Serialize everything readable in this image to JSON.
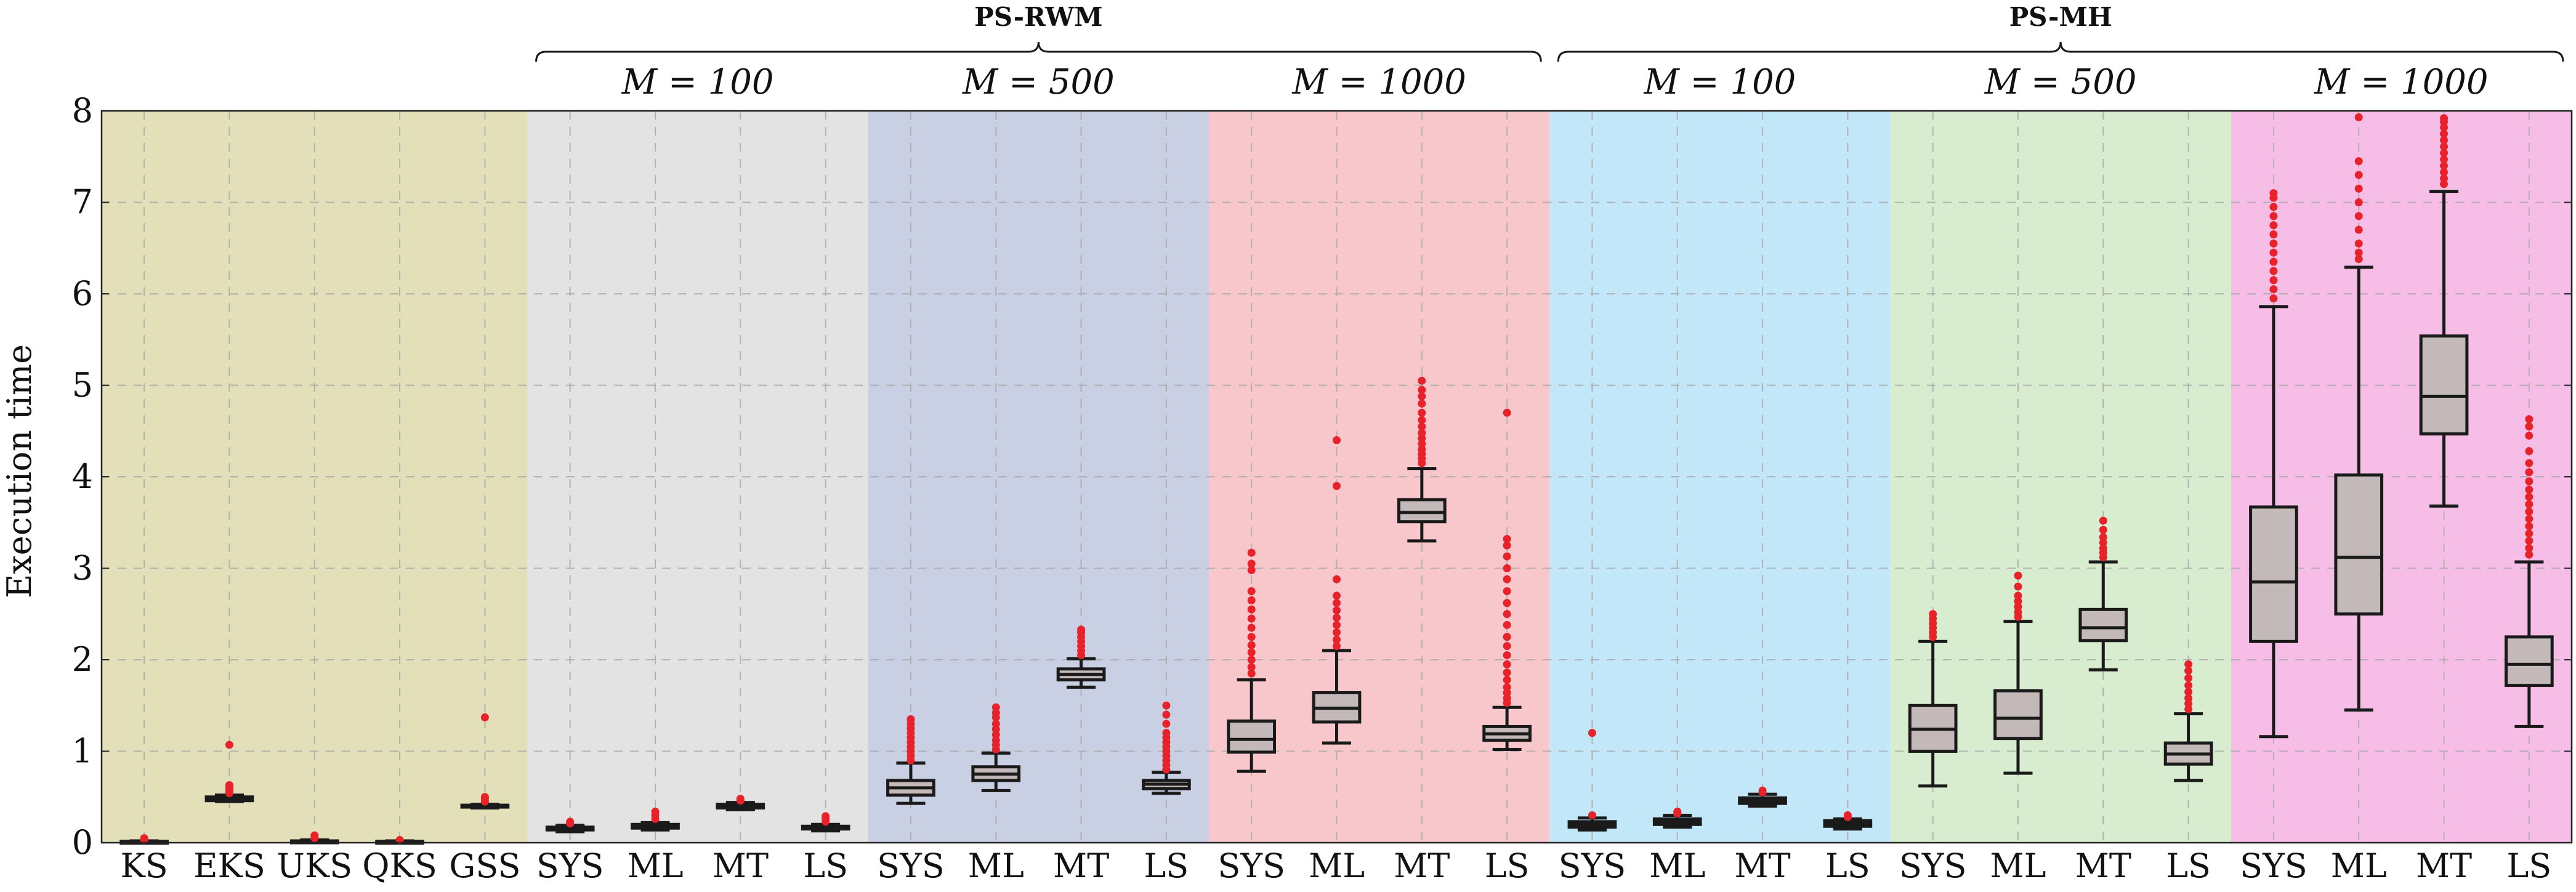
{
  "chart_data": {
    "type": "box",
    "ylabel": "Execution time",
    "ylim": [
      0,
      8
    ],
    "yticks": [
      0,
      1,
      2,
      3,
      4,
      5,
      6,
      7,
      8
    ],
    "grid": true,
    "top_groups": [
      {
        "label": "PS-RWM",
        "panels": [
          1,
          2,
          3
        ]
      },
      {
        "label": "PS-MH",
        "panels": [
          4,
          5,
          6
        ]
      }
    ],
    "panels": [
      {
        "subtitle": "",
        "color": "#e3dfb8",
        "boxes": [
          {
            "label": "KS",
            "q1": 0.005,
            "median": 0.01,
            "q3": 0.015,
            "lo": 0.0,
            "hi": 0.02,
            "outliers": [
              0.03,
              0.05
            ]
          },
          {
            "label": "EKS",
            "q1": 0.46,
            "median": 0.48,
            "q3": 0.5,
            "lo": 0.45,
            "hi": 0.52,
            "outliers": [
              0.54,
              0.56,
              0.58,
              0.6,
              0.63,
              1.07
            ]
          },
          {
            "label": "UKS",
            "q1": 0.01,
            "median": 0.015,
            "q3": 0.02,
            "lo": 0.0,
            "hi": 0.03,
            "outliers": [
              0.05,
              0.08
            ]
          },
          {
            "label": "QKS",
            "q1": 0.005,
            "median": 0.01,
            "q3": 0.015,
            "lo": 0.0,
            "hi": 0.02,
            "outliers": [
              0.03
            ]
          },
          {
            "label": "GSS",
            "q1": 0.39,
            "median": 0.4,
            "q3": 0.41,
            "lo": 0.38,
            "hi": 0.42,
            "outliers": [
              0.45,
              0.48,
              0.5,
              1.37
            ]
          }
        ]
      },
      {
        "subtitle": "M = 100",
        "color": "#e3e3e3",
        "boxes": [
          {
            "label": "SYS",
            "q1": 0.14,
            "median": 0.155,
            "q3": 0.17,
            "lo": 0.12,
            "hi": 0.19,
            "outliers": [
              0.21,
              0.23
            ]
          },
          {
            "label": "ML",
            "q1": 0.16,
            "median": 0.18,
            "q3": 0.2,
            "lo": 0.14,
            "hi": 0.22,
            "outliers": [
              0.26,
              0.3,
              0.34
            ]
          },
          {
            "label": "MT",
            "q1": 0.38,
            "median": 0.4,
            "q3": 0.42,
            "lo": 0.36,
            "hi": 0.44,
            "outliers": [
              0.46,
              0.48
            ]
          },
          {
            "label": "LS",
            "q1": 0.15,
            "median": 0.165,
            "q3": 0.18,
            "lo": 0.13,
            "hi": 0.2,
            "outliers": [
              0.23,
              0.26,
              0.29
            ]
          }
        ]
      },
      {
        "subtitle": "M = 500",
        "color": "#c9d0e3",
        "boxes": [
          {
            "label": "SYS",
            "q1": 0.52,
            "median": 0.6,
            "q3": 0.68,
            "lo": 0.43,
            "hi": 0.87,
            "outliers": [
              0.9,
              0.95,
              1.0,
              1.05,
              1.1,
              1.15,
              1.2,
              1.25,
              1.3,
              1.35
            ]
          },
          {
            "label": "ML",
            "q1": 0.68,
            "median": 0.75,
            "q3": 0.83,
            "lo": 0.57,
            "hi": 0.98,
            "outliers": [
              1.02,
              1.07,
              1.12,
              1.18,
              1.24,
              1.3,
              1.37,
              1.42,
              1.48
            ]
          },
          {
            "label": "MT",
            "q1": 1.78,
            "median": 1.84,
            "q3": 1.9,
            "lo": 1.7,
            "hi": 2.01,
            "outliers": [
              2.05,
              2.1,
              2.15,
              2.2,
              2.25,
              2.3,
              2.33
            ]
          },
          {
            "label": "LS",
            "q1": 0.59,
            "median": 0.64,
            "q3": 0.68,
            "lo": 0.54,
            "hi": 0.77,
            "outliers": [
              0.8,
              0.85,
              0.9,
              0.95,
              1.0,
              1.05,
              1.1,
              1.15,
              1.2,
              1.3,
              1.4,
              1.5
            ]
          }
        ]
      },
      {
        "subtitle": "M = 1000",
        "color": "#f8c7cb",
        "boxes": [
          {
            "label": "SYS",
            "q1": 0.99,
            "median": 1.13,
            "q3": 1.33,
            "lo": 0.78,
            "hi": 1.78,
            "outliers": [
              1.85,
              1.92,
              2.0,
              2.08,
              2.16,
              2.25,
              2.35,
              2.45,
              2.55,
              2.65,
              2.75,
              2.98,
              3.05,
              3.17
            ]
          },
          {
            "label": "ML",
            "q1": 1.32,
            "median": 1.47,
            "q3": 1.64,
            "lo": 1.09,
            "hi": 2.1,
            "outliers": [
              2.15,
              2.22,
              2.3,
              2.38,
              2.46,
              2.54,
              2.62,
              2.7,
              2.88,
              3.9,
              4.4
            ]
          },
          {
            "label": "MT",
            "q1": 3.51,
            "median": 3.61,
            "q3": 3.75,
            "lo": 3.3,
            "hi": 4.09,
            "outliers": [
              4.15,
              4.2,
              4.25,
              4.3,
              4.36,
              4.42,
              4.48,
              4.55,
              4.62,
              4.7,
              4.8,
              4.88,
              4.95,
              5.05
            ]
          },
          {
            "label": "LS",
            "q1": 1.12,
            "median": 1.19,
            "q3": 1.27,
            "lo": 1.02,
            "hi": 1.48,
            "outliers": [
              1.53,
              1.58,
              1.64,
              1.7,
              1.78,
              1.86,
              1.95,
              2.05,
              2.15,
              2.25,
              2.38,
              2.5,
              2.62,
              2.75,
              2.88,
              3.0,
              3.13,
              3.25,
              3.32,
              4.7
            ]
          }
        ]
      },
      {
        "subtitle": "M = 100",
        "color": "#c1e7f8",
        "boxes": [
          {
            "label": "SYS",
            "q1": 0.17,
            "median": 0.2,
            "q3": 0.23,
            "lo": 0.14,
            "hi": 0.27,
            "outliers": [
              0.3,
              1.2
            ]
          },
          {
            "label": "ML",
            "q1": 0.2,
            "median": 0.23,
            "q3": 0.26,
            "lo": 0.17,
            "hi": 0.3,
            "outliers": [
              0.32,
              0.34
            ]
          },
          {
            "label": "MT",
            "q1": 0.43,
            "median": 0.46,
            "q3": 0.49,
            "lo": 0.4,
            "hi": 0.53,
            "outliers": [
              0.55,
              0.57
            ]
          },
          {
            "label": "LS",
            "q1": 0.18,
            "median": 0.21,
            "q3": 0.24,
            "lo": 0.15,
            "hi": 0.26,
            "outliers": [
              0.28,
              0.3
            ]
          }
        ]
      },
      {
        "subtitle": "M = 500",
        "color": "#d8ecd0",
        "boxes": [
          {
            "label": "SYS",
            "q1": 1.0,
            "median": 1.24,
            "q3": 1.5,
            "lo": 0.62,
            "hi": 2.2,
            "outliers": [
              2.25,
              2.3,
              2.35,
              2.4,
              2.45,
              2.5
            ]
          },
          {
            "label": "ML",
            "q1": 1.14,
            "median": 1.36,
            "q3": 1.66,
            "lo": 0.76,
            "hi": 2.42,
            "outliers": [
              2.47,
              2.52,
              2.58,
              2.64,
              2.7,
              2.8,
              2.92
            ]
          },
          {
            "label": "MT",
            "q1": 2.21,
            "median": 2.35,
            "q3": 2.55,
            "lo": 1.89,
            "hi": 3.07,
            "outliers": [
              3.12,
              3.17,
              3.22,
              3.28,
              3.34,
              3.42,
              3.52
            ]
          },
          {
            "label": "LS",
            "q1": 0.86,
            "median": 0.97,
            "q3": 1.09,
            "lo": 0.68,
            "hi": 1.41,
            "outliers": [
              1.46,
              1.52,
              1.58,
              1.65,
              1.72,
              1.8,
              1.88,
              1.95
            ]
          }
        ]
      },
      {
        "subtitle": "M = 1000",
        "color": "#f6bde6",
        "boxes": [
          {
            "label": "SYS",
            "q1": 2.2,
            "median": 2.85,
            "q3": 3.67,
            "lo": 1.16,
            "hi": 5.86,
            "outliers": [
              5.95,
              6.05,
              6.15,
              6.25,
              6.35,
              6.45,
              6.55,
              6.65,
              6.75,
              6.85,
              6.95,
              7.05,
              7.1
            ]
          },
          {
            "label": "ML",
            "q1": 2.5,
            "median": 3.12,
            "q3": 4.02,
            "lo": 1.45,
            "hi": 6.29,
            "outliers": [
              6.38,
              6.45,
              6.55,
              6.7,
              6.85,
              7.0,
              7.15,
              7.3,
              7.45,
              7.93
            ]
          },
          {
            "label": "MT",
            "q1": 4.47,
            "median": 4.88,
            "q3": 5.54,
            "lo": 3.68,
            "hi": 7.12,
            "outliers": [
              7.2,
              7.26,
              7.33,
              7.4,
              7.47,
              7.54,
              7.61,
              7.68,
              7.75,
              7.82,
              7.88,
              7.92
            ]
          },
          {
            "label": "LS",
            "q1": 1.72,
            "median": 1.95,
            "q3": 2.25,
            "lo": 1.27,
            "hi": 3.07,
            "outliers": [
              3.15,
              3.22,
              3.3,
              3.38,
              3.46,
              3.54,
              3.62,
              3.7,
              3.78,
              3.86,
              3.95,
              4.05,
              4.15,
              4.28,
              4.45,
              4.55,
              4.63
            ]
          }
        ]
      }
    ]
  }
}
